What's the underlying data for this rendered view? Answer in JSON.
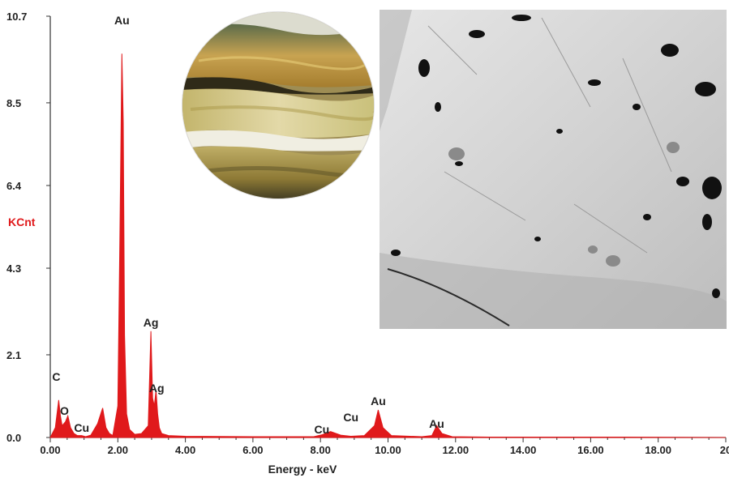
{
  "chart_data": {
    "type": "line",
    "ylabel": "KCnt",
    "xlabel": "Energy - keV",
    "xlim": [
      0,
      20
    ],
    "ylim": [
      0,
      10.7
    ],
    "yticks": [
      "10.7",
      "8.5",
      "6.4",
      "4.3",
      "2.1",
      "0.0"
    ],
    "xticks": [
      "0.00",
      "2.00",
      "4.00",
      "6.00",
      "8.00",
      "10.00",
      "12.00",
      "14.00",
      "16.00",
      "18.00",
      "20"
    ],
    "series": [
      {
        "color": "#e0191b",
        "x": [
          0.0,
          0.15,
          0.25,
          0.3,
          0.35,
          0.45,
          0.52,
          0.6,
          0.7,
          0.8,
          0.93,
          1.05,
          1.2,
          1.4,
          1.55,
          1.65,
          1.75,
          1.85,
          2.0,
          2.06,
          2.12,
          2.16,
          2.2,
          2.26,
          2.35,
          2.5,
          2.7,
          2.9,
          2.98,
          3.03,
          3.08,
          3.13,
          3.18,
          3.23,
          3.3,
          3.5,
          4.0,
          6.0,
          7.8,
          8.05,
          8.3,
          8.6,
          8.9,
          9.3,
          9.6,
          9.71,
          9.85,
          10.1,
          11.0,
          11.3,
          11.44,
          11.6,
          11.9,
          13.0,
          15.0,
          17.0,
          20.0
        ],
        "y": [
          0.0,
          0.25,
          0.95,
          0.55,
          0.3,
          0.4,
          0.55,
          0.25,
          0.1,
          0.05,
          0.05,
          0.02,
          0.06,
          0.35,
          0.75,
          0.25,
          0.1,
          0.05,
          0.8,
          5.0,
          9.75,
          8.0,
          2.6,
          0.6,
          0.2,
          0.08,
          0.1,
          0.3,
          2.7,
          1.0,
          0.8,
          1.2,
          0.6,
          0.25,
          0.1,
          0.05,
          0.03,
          0.02,
          0.02,
          0.07,
          0.15,
          0.06,
          0.03,
          0.05,
          0.3,
          0.7,
          0.25,
          0.05,
          0.02,
          0.05,
          0.3,
          0.1,
          0.02,
          0.01,
          0.01,
          0.01,
          0.0
        ]
      }
    ],
    "annotations": [
      {
        "text": "Au",
        "x": 2.12
      },
      {
        "text": "Ag",
        "x": 2.98
      },
      {
        "text": "Ag",
        "x": 3.15
      },
      {
        "text": "C",
        "x": 0.18
      },
      {
        "text": "O",
        "x": 0.42
      },
      {
        "text": "Cu",
        "x": 0.93
      },
      {
        "text": "Cu",
        "x": 8.04
      },
      {
        "text": "Cu",
        "x": 8.9
      },
      {
        "text": "Au",
        "x": 9.71
      },
      {
        "text": "Au",
        "x": 11.44
      }
    ]
  }
}
